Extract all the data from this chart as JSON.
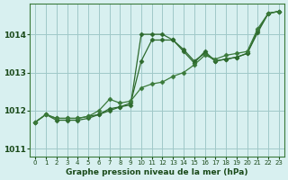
{
  "hours": [
    0,
    1,
    2,
    3,
    4,
    5,
    6,
    7,
    8,
    9,
    10,
    11,
    12,
    13,
    14,
    15,
    16,
    17,
    18,
    19,
    20,
    21,
    22,
    23
  ],
  "line1": [
    1011.7,
    1011.9,
    1011.8,
    1011.8,
    1011.8,
    1011.85,
    1011.9,
    1012.0,
    1012.1,
    1012.2,
    1013.3,
    1013.85,
    1013.85,
    1013.85,
    1013.6,
    1013.3,
    1013.5,
    1013.3,
    1013.35,
    1013.4,
    1013.5,
    1014.05,
    1014.55,
    1014.6
  ],
  "line2": [
    1011.7,
    1011.9,
    1011.75,
    1011.75,
    1011.75,
    1011.8,
    1011.9,
    1012.05,
    1012.1,
    1012.15,
    1014.0,
    1014.0,
    1014.0,
    1013.85,
    1013.55,
    1013.25,
    1013.55,
    1013.3,
    1013.35,
    1013.4,
    1013.5,
    1014.1,
    1014.55,
    1014.6
  ],
  "line3": [
    1011.7,
    1011.9,
    1011.8,
    1011.8,
    1011.8,
    1011.85,
    1012.0,
    1012.3,
    1012.2,
    1012.25,
    1012.6,
    1012.7,
    1012.75,
    1012.9,
    1013.0,
    1013.2,
    1013.45,
    1013.35,
    1013.45,
    1013.5,
    1013.55,
    1014.15,
    1014.55,
    1014.6
  ],
  "line_color": "#2d6a2d",
  "line_color2": "#3a7a3a",
  "bg_color": "#d8f0f0",
  "grid_color": "#a0c8c8",
  "xlabel": "Graphe pression niveau de la mer (hPa)",
  "ylim": [
    1010.8,
    1014.8
  ],
  "yticks": [
    1011,
    1012,
    1013,
    1014
  ],
  "xlim": [
    -0.5,
    23.5
  ],
  "xticks": [
    0,
    1,
    2,
    3,
    4,
    5,
    6,
    7,
    8,
    9,
    10,
    11,
    12,
    13,
    14,
    15,
    16,
    17,
    18,
    19,
    20,
    21,
    22,
    23
  ]
}
